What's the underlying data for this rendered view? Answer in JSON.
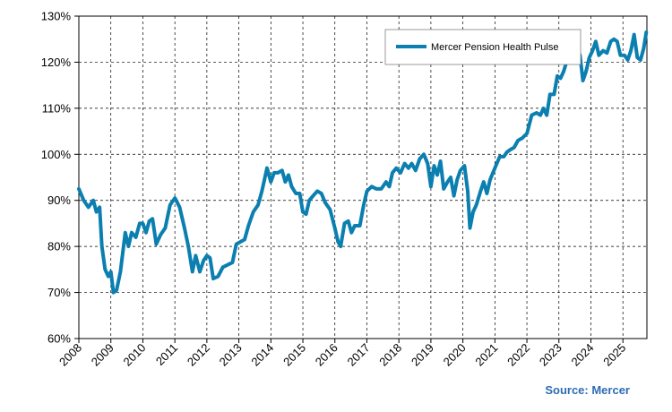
{
  "chart_data": {
    "type": "line",
    "title": "",
    "xlabel": "",
    "ylabel": "",
    "ylim": [
      60,
      130
    ],
    "yticks": [
      60,
      70,
      80,
      90,
      100,
      110,
      120,
      130
    ],
    "ytick_labels": [
      "60%",
      "70%",
      "80%",
      "90%",
      "100%",
      "110%",
      "120%",
      "130%"
    ],
    "xlim": [
      2008,
      2025.75
    ],
    "xticks": [
      2008,
      2009,
      2010,
      2011,
      2012,
      2013,
      2014,
      2015,
      2016,
      2017,
      2018,
      2019,
      2020,
      2021,
      2022,
      2023,
      2024,
      2025
    ],
    "xtick_labels": [
      "2008",
      "2009",
      "2010",
      "2011",
      "2012",
      "2013",
      "2014",
      "2015",
      "2016",
      "2017",
      "2018",
      "2019",
      "2020",
      "2021",
      "2022",
      "2023",
      "2024",
      "2025"
    ],
    "grid": true,
    "legend_position": "top-right",
    "series": [
      {
        "name": "Mercer Pension Health Pulse",
        "color": "#0a7fb0",
        "points": [
          [
            2008.0,
            92.5
          ],
          [
            2008.15,
            90.0
          ],
          [
            2008.3,
            88.5
          ],
          [
            2008.45,
            90.0
          ],
          [
            2008.55,
            87.5
          ],
          [
            2008.65,
            88.5
          ],
          [
            2008.72,
            80.0
          ],
          [
            2008.82,
            75.0
          ],
          [
            2008.92,
            73.5
          ],
          [
            2009.0,
            74.5
          ],
          [
            2009.08,
            70.0
          ],
          [
            2009.18,
            70.5
          ],
          [
            2009.3,
            74.5
          ],
          [
            2009.45,
            83.0
          ],
          [
            2009.55,
            80.0
          ],
          [
            2009.65,
            83.0
          ],
          [
            2009.78,
            82.0
          ],
          [
            2009.9,
            85.0
          ],
          [
            2010.0,
            85.0
          ],
          [
            2010.1,
            83.0
          ],
          [
            2010.2,
            85.5
          ],
          [
            2010.3,
            86.0
          ],
          [
            2010.42,
            80.5
          ],
          [
            2010.55,
            82.5
          ],
          [
            2010.7,
            84.0
          ],
          [
            2010.85,
            89.0
          ],
          [
            2011.0,
            90.5
          ],
          [
            2011.15,
            88.5
          ],
          [
            2011.3,
            84.0
          ],
          [
            2011.42,
            80.0
          ],
          [
            2011.55,
            74.5
          ],
          [
            2011.65,
            78.0
          ],
          [
            2011.78,
            74.5
          ],
          [
            2011.9,
            77.0
          ],
          [
            2012.0,
            78.0
          ],
          [
            2012.1,
            77.5
          ],
          [
            2012.2,
            73.0
          ],
          [
            2012.35,
            73.5
          ],
          [
            2012.5,
            75.5
          ],
          [
            2012.65,
            76.0
          ],
          [
            2012.8,
            76.5
          ],
          [
            2012.92,
            80.5
          ],
          [
            2013.05,
            81.0
          ],
          [
            2013.18,
            81.5
          ],
          [
            2013.3,
            84.5
          ],
          [
            2013.45,
            87.5
          ],
          [
            2013.6,
            89.0
          ],
          [
            2013.72,
            92.0
          ],
          [
            2013.88,
            97.0
          ],
          [
            2014.0,
            94.0
          ],
          [
            2014.1,
            96.0
          ],
          [
            2014.22,
            96.0
          ],
          [
            2014.35,
            96.5
          ],
          [
            2014.45,
            94.0
          ],
          [
            2014.55,
            95.5
          ],
          [
            2014.65,
            93.0
          ],
          [
            2014.78,
            91.5
          ],
          [
            2014.9,
            91.5
          ],
          [
            2015.0,
            87.5
          ],
          [
            2015.1,
            87.0
          ],
          [
            2015.2,
            90.0
          ],
          [
            2015.32,
            91.0
          ],
          [
            2015.45,
            92.0
          ],
          [
            2015.58,
            91.5
          ],
          [
            2015.7,
            89.5
          ],
          [
            2015.85,
            88.0
          ],
          [
            2016.0,
            84.0
          ],
          [
            2016.1,
            81.0
          ],
          [
            2016.18,
            80.0
          ],
          [
            2016.3,
            85.0
          ],
          [
            2016.42,
            85.5
          ],
          [
            2016.52,
            83.0
          ],
          [
            2016.62,
            84.5
          ],
          [
            2016.78,
            84.5
          ],
          [
            2016.9,
            89.0
          ],
          [
            2017.0,
            92.0
          ],
          [
            2017.15,
            93.0
          ],
          [
            2017.3,
            92.5
          ],
          [
            2017.45,
            92.5
          ],
          [
            2017.6,
            94.0
          ],
          [
            2017.7,
            93.0
          ],
          [
            2017.8,
            96.0
          ],
          [
            2017.92,
            97.0
          ],
          [
            2018.05,
            96.0
          ],
          [
            2018.18,
            98.0
          ],
          [
            2018.3,
            97.0
          ],
          [
            2018.4,
            98.0
          ],
          [
            2018.52,
            96.5
          ],
          [
            2018.65,
            99.0
          ],
          [
            2018.78,
            100.0
          ],
          [
            2018.9,
            98.0
          ],
          [
            2019.0,
            93.0
          ],
          [
            2019.1,
            97.5
          ],
          [
            2019.2,
            95.5
          ],
          [
            2019.3,
            98.5
          ],
          [
            2019.4,
            92.5
          ],
          [
            2019.52,
            94.0
          ],
          [
            2019.62,
            95.0
          ],
          [
            2019.72,
            91.0
          ],
          [
            2019.82,
            94.5
          ],
          [
            2019.92,
            96.5
          ],
          [
            2020.05,
            97.5
          ],
          [
            2020.15,
            92.0
          ],
          [
            2020.22,
            84.0
          ],
          [
            2020.32,
            87.5
          ],
          [
            2020.42,
            89.0
          ],
          [
            2020.55,
            92.0
          ],
          [
            2020.65,
            94.0
          ],
          [
            2020.75,
            91.5
          ],
          [
            2020.85,
            94.5
          ],
          [
            2021.0,
            97.0
          ],
          [
            2021.15,
            99.5
          ],
          [
            2021.28,
            99.5
          ],
          [
            2021.38,
            100.5
          ],
          [
            2021.48,
            101.0
          ],
          [
            2021.6,
            101.5
          ],
          [
            2021.72,
            103.0
          ],
          [
            2021.85,
            103.5
          ],
          [
            2022.0,
            104.5
          ],
          [
            2022.15,
            108.5
          ],
          [
            2022.3,
            109.0
          ],
          [
            2022.42,
            108.5
          ],
          [
            2022.52,
            110.0
          ],
          [
            2022.62,
            108.5
          ],
          [
            2022.72,
            113.0
          ],
          [
            2022.85,
            113.0
          ],
          [
            2022.95,
            117.0
          ],
          [
            2023.05,
            116.5
          ],
          [
            2023.15,
            118.0
          ],
          [
            2023.28,
            121.0
          ],
          [
            2023.38,
            123.5
          ],
          [
            2023.48,
            125.0
          ],
          [
            2023.58,
            123.0
          ],
          [
            2023.66,
            121.5
          ],
          [
            2023.75,
            116.0
          ],
          [
            2023.85,
            118.0
          ],
          [
            2023.95,
            121.0
          ],
          [
            2024.05,
            122.5
          ],
          [
            2024.15,
            124.5
          ],
          [
            2024.25,
            121.5
          ],
          [
            2024.38,
            122.5
          ],
          [
            2024.5,
            122.0
          ],
          [
            2024.62,
            124.5
          ],
          [
            2024.72,
            125.0
          ],
          [
            2024.82,
            124.5
          ],
          [
            2024.92,
            121.5
          ],
          [
            2025.05,
            121.5
          ],
          [
            2025.15,
            120.5
          ],
          [
            2025.25,
            122.5
          ],
          [
            2025.35,
            126.0
          ],
          [
            2025.45,
            121.0
          ],
          [
            2025.55,
            120.5
          ],
          [
            2025.65,
            123.0
          ],
          [
            2025.73,
            126.5
          ]
        ]
      }
    ]
  },
  "source_text": "Source: Mercer"
}
